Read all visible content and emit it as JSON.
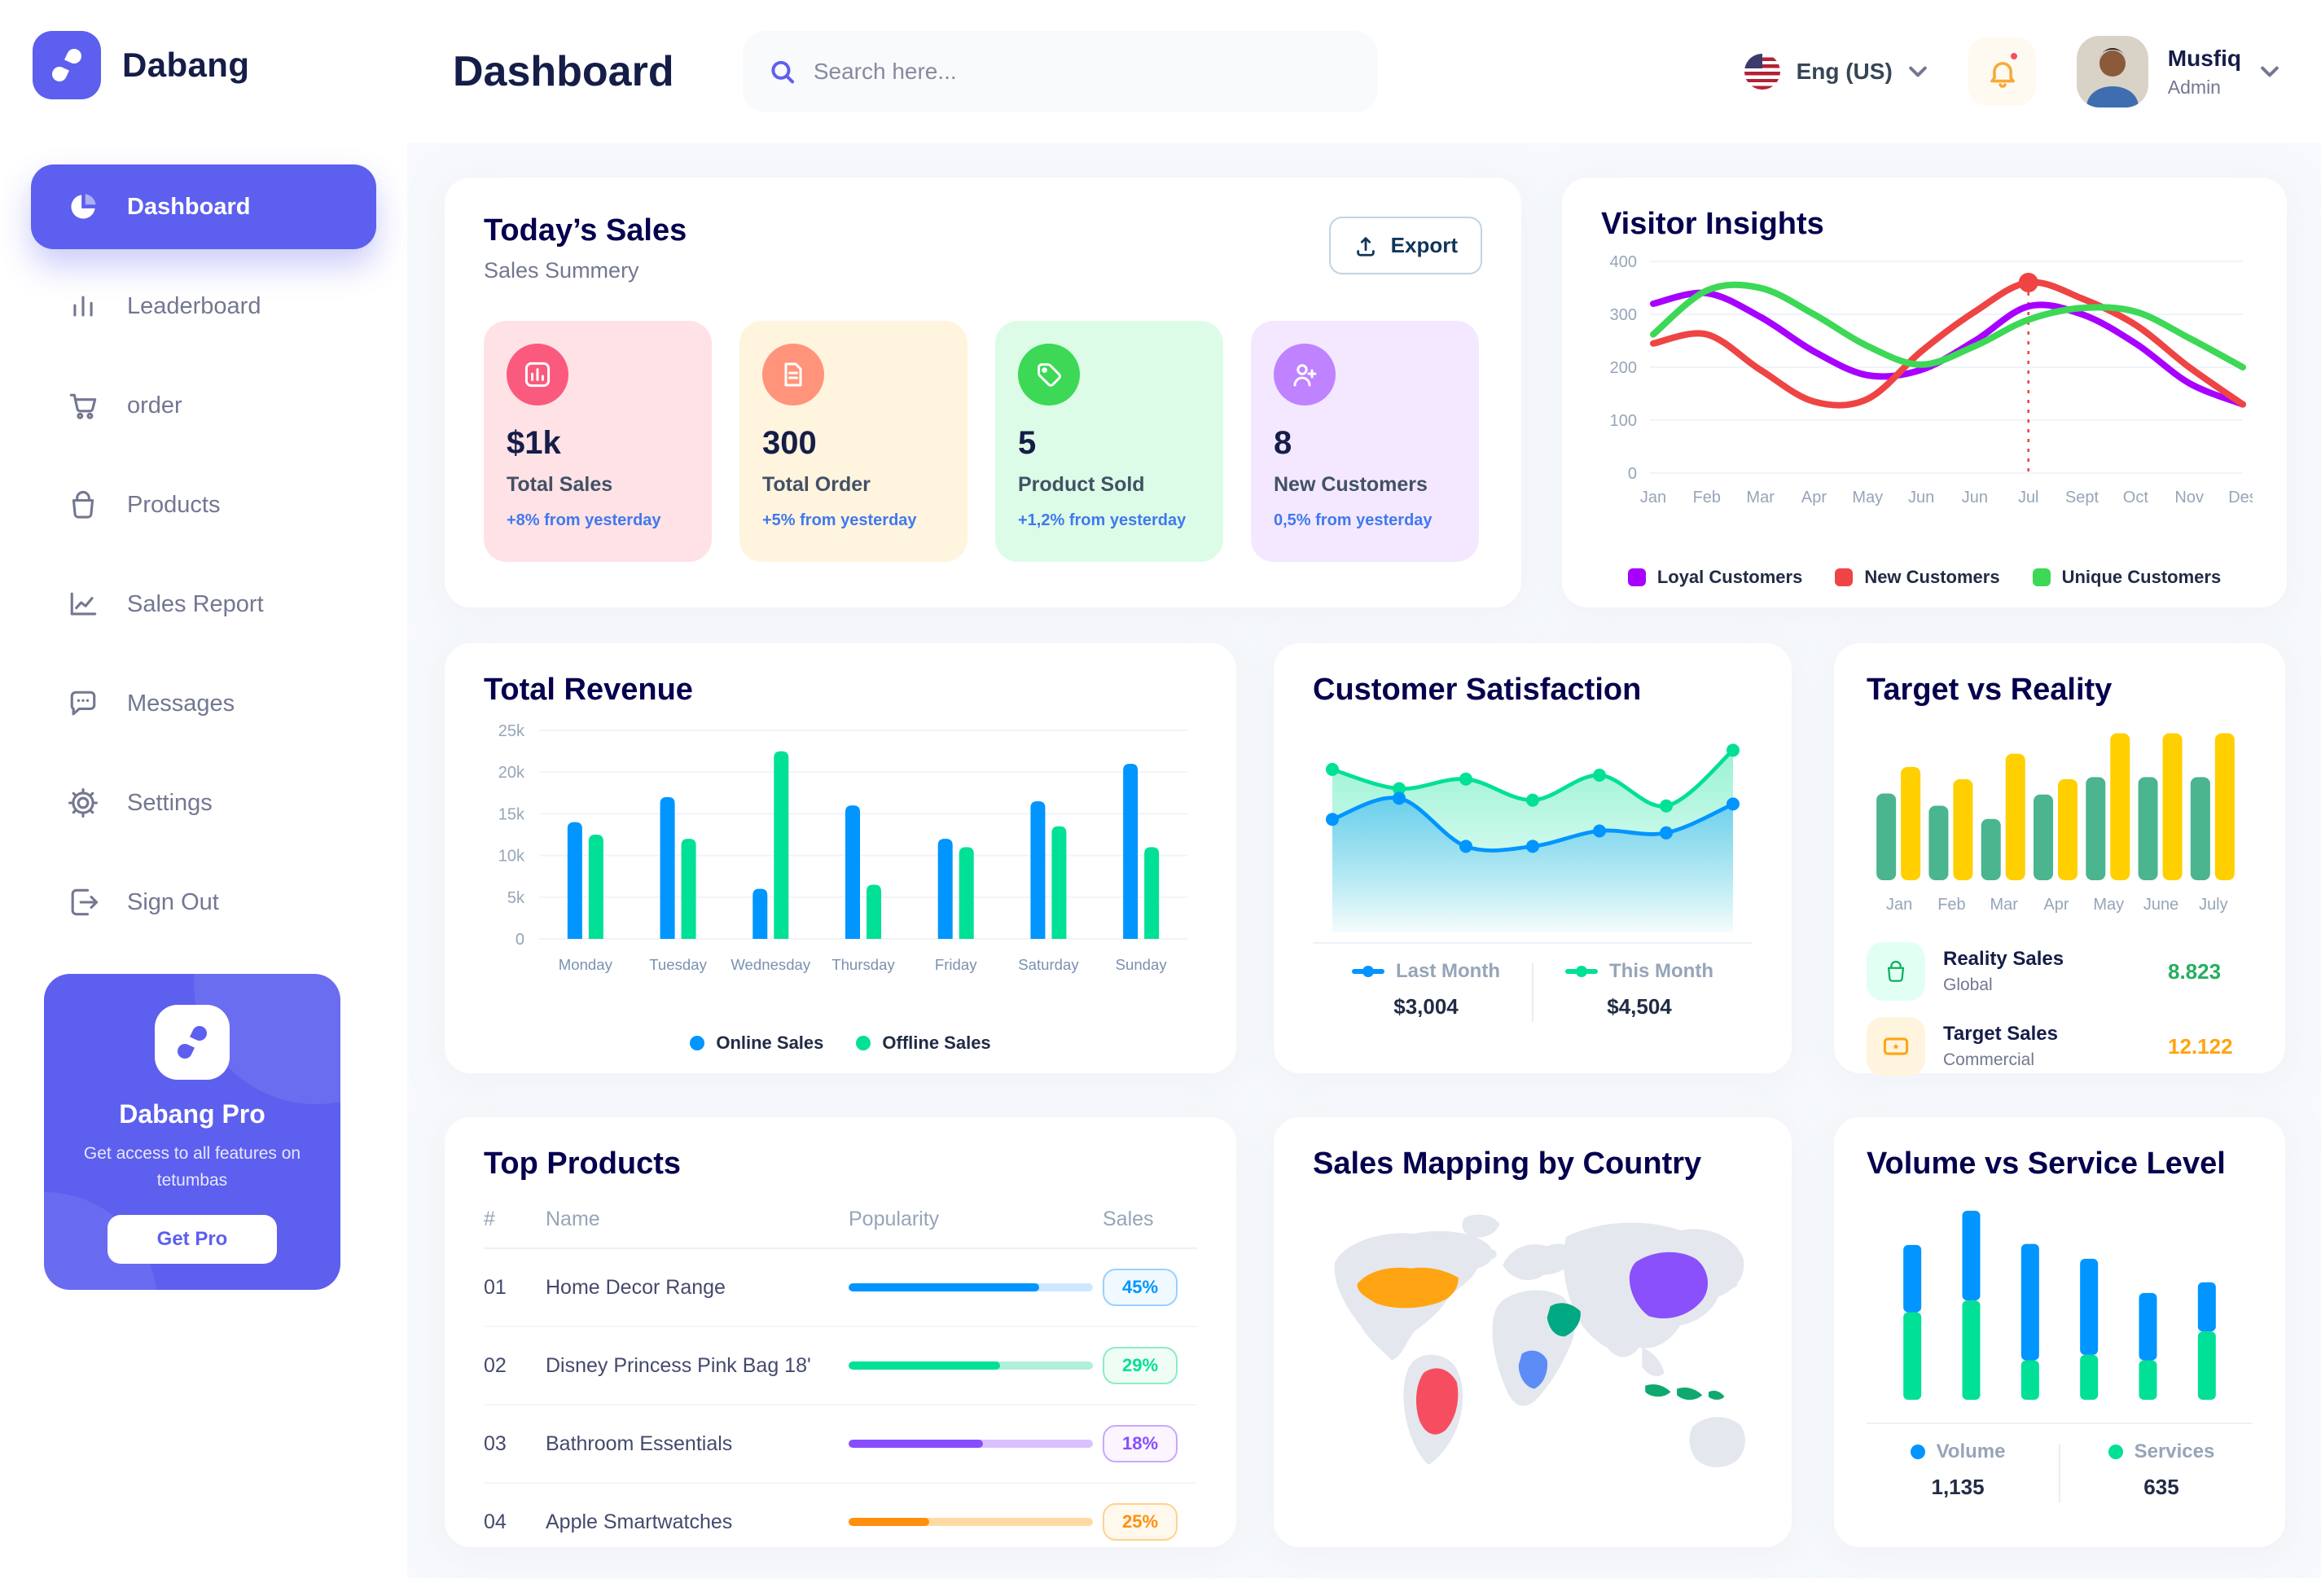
{
  "brand": {
    "name": "Dabang"
  },
  "header": {
    "title": "Dashboard",
    "search_placeholder": "Search here...",
    "language": "Eng (US)",
    "user": {
      "name": "Musfiq",
      "role": "Admin"
    }
  },
  "sidebar": {
    "items": [
      {
        "label": "Dashboard",
        "icon": "pie-chart",
        "active": true
      },
      {
        "label": "Leaderboard",
        "icon": "bar-chart",
        "active": false
      },
      {
        "label": "order",
        "icon": "cart",
        "active": false
      },
      {
        "label": "Products",
        "icon": "bag",
        "active": false
      },
      {
        "label": "Sales Report",
        "icon": "line-chart",
        "active": false
      },
      {
        "label": "Messages",
        "icon": "chat",
        "active": false
      },
      {
        "label": "Settings",
        "icon": "gear",
        "active": false
      },
      {
        "label": "Sign Out",
        "icon": "sign-out",
        "active": false
      }
    ],
    "promo": {
      "title": "Dabang Pro",
      "subtitle": "Get access to all features on tetumbas",
      "cta": "Get Pro"
    }
  },
  "todays_sales": {
    "title": "Today’s Sales",
    "subtitle": "Sales Summery",
    "export_label": "Export",
    "cards": [
      {
        "value": "$1k",
        "label": "Total Sales",
        "delta": "+8% from yesterday",
        "bg": "#FFE2E5",
        "icon_bg": "#FA5A7D",
        "icon": "bar-chart"
      },
      {
        "value": "300",
        "label": "Total Order",
        "delta": "+5% from yesterday",
        "bg": "#FFF4DE",
        "icon_bg": "#FF947A",
        "icon": "file"
      },
      {
        "value": "5",
        "label": "Product Sold",
        "delta": "+1,2% from yesterday",
        "bg": "#DCFCE7",
        "icon_bg": "#3CD856",
        "icon": "tag"
      },
      {
        "value": "8",
        "label": "New Customers",
        "delta": "0,5% from yesterday",
        "bg": "#F3E8FF",
        "icon_bg": "#BF83FF",
        "icon": "user-plus"
      }
    ]
  },
  "visitor_insights": {
    "title": "Visitor Insights",
    "type": "line",
    "x": [
      "Jan",
      "Feb",
      "Mar",
      "Apr",
      "May",
      "Jun",
      "Jun",
      "Jul",
      "Sept",
      "Oct",
      "Nov",
      "Des"
    ],
    "ylim": [
      0,
      400
    ],
    "yticks": [
      0,
      100,
      200,
      300,
      400
    ],
    "series": [
      {
        "name": "Loyal Customers",
        "color": "#A700FF",
        "values": [
          320,
          340,
          295,
          230,
          185,
          195,
          250,
          315,
          300,
          245,
          170,
          130
        ]
      },
      {
        "name": "New Customers",
        "color": "#EF4444",
        "values": [
          245,
          262,
          195,
          135,
          140,
          230,
          305,
          360,
          330,
          280,
          200,
          130
        ]
      },
      {
        "name": "Unique Customers",
        "color": "#3CD856",
        "values": [
          262,
          345,
          350,
          300,
          240,
          205,
          240,
          290,
          312,
          305,
          255,
          200
        ]
      }
    ],
    "marker": {
      "series": "New Customers",
      "x_index": 7,
      "value": 360
    }
  },
  "total_revenue": {
    "title": "Total Revenue",
    "type": "bar",
    "categories": [
      "Monday",
      "Tuesday",
      "Wednesday",
      "Thursday",
      "Friday",
      "Saturday",
      "Sunday"
    ],
    "ylim": [
      0,
      25000
    ],
    "yticks_labels": [
      "0",
      "5k",
      "10k",
      "15k",
      "20k",
      "25k"
    ],
    "series": [
      {
        "name": "Online Sales",
        "color": "#0095FF",
        "values": [
          14000,
          17000,
          6000,
          16000,
          12000,
          16500,
          21000
        ]
      },
      {
        "name": "Offline Sales",
        "color": "#00E096",
        "values": [
          12500,
          12000,
          22500,
          6500,
          11000,
          13500,
          11000
        ]
      }
    ]
  },
  "customer_satisfaction": {
    "title": "Customer Satisfaction",
    "type": "area",
    "series": [
      {
        "name": "Last Month",
        "color": "#0095FF",
        "total": "$3,004",
        "values": [
          52,
          63,
          38,
          38,
          46,
          45,
          60
        ]
      },
      {
        "name": "This Month",
        "color": "#00E096",
        "total": "$4,504",
        "values": [
          78,
          68,
          73,
          62,
          75,
          59,
          88
        ]
      }
    ]
  },
  "target_vs_reality": {
    "title": "Target vs Reality",
    "type": "bar",
    "categories": [
      "Jan",
      "Feb",
      "Mar",
      "Apr",
      "May",
      "June",
      "July"
    ],
    "series": [
      {
        "name": "Reality Sales",
        "color": "#4AB58E",
        "values": [
          8.5,
          7.3,
          6.0,
          8.4,
          10.1,
          10.1,
          10.1
        ]
      },
      {
        "name": "Target Sales",
        "color": "#FFCF00",
        "values": [
          11.1,
          9.9,
          12.4,
          9.9,
          14.4,
          14.4,
          14.4
        ]
      }
    ],
    "legend": [
      {
        "name": "Reality Sales",
        "sub": "Global",
        "value": "8.823",
        "value_color": "#27AE60",
        "tile_bg": "#E2FFF3",
        "icon_color": "#0CAF60",
        "icon": "bag"
      },
      {
        "name": "Target Sales",
        "sub": "Commercial",
        "value": "12.122",
        "value_color": "#FFA412",
        "tile_bg": "#FFF4DE",
        "icon_color": "#FFA412",
        "icon": "ticket"
      }
    ]
  },
  "top_products": {
    "title": "Top Products",
    "columns": [
      "#",
      "Name",
      "Popularity",
      "Sales"
    ],
    "rows": [
      {
        "num": "01",
        "name": "Home Decor Range",
        "popularity": 78,
        "sales": "45%",
        "color": "#0095FF",
        "track": "#CDE7FF",
        "badge_bg": "#F0F9FF",
        "badge_border": "#9AD0FF"
      },
      {
        "num": "02",
        "name": "Disney Princess Pink Bag 18'",
        "popularity": 62,
        "sales": "29%",
        "color": "#00E096",
        "track": "#B0F0D9",
        "badge_bg": "#F0FDF4",
        "badge_border": "#8CEBC8"
      },
      {
        "num": "03",
        "name": "Bathroom Essentials",
        "popularity": 55,
        "sales": "18%",
        "color": "#884DFF",
        "track": "#D9C2FF",
        "badge_bg": "#FAF5FF",
        "badge_border": "#C9A8FF"
      },
      {
        "num": "04",
        "name": "Apple Smartwatches",
        "popularity": 33,
        "sales": "25%",
        "color": "#FF8F0D",
        "track": "#FFD9A3",
        "badge_bg": "#FFF8EC",
        "badge_border": "#FFD193"
      }
    ]
  },
  "sales_mapping": {
    "title": "Sales Mapping by Country",
    "countries": [
      {
        "key": "usa",
        "name": "United States",
        "color": "#FFA412"
      },
      {
        "key": "brazil",
        "name": "Brazil",
        "color": "#F64E60"
      },
      {
        "key": "saudi",
        "name": "Saudi Arabia",
        "color": "#00A884"
      },
      {
        "key": "congo",
        "name": "DR Congo",
        "color": "#5C8DF6"
      },
      {
        "key": "china",
        "name": "China",
        "color": "#8950FC"
      },
      {
        "key": "indonesia",
        "name": "Indonesia",
        "color": "#0FA96F"
      }
    ]
  },
  "volume_service": {
    "title": "Volume vs Service Level",
    "type": "stacked-bar",
    "series": [
      {
        "name": "Volume",
        "color": "#0095FF",
        "total": "1,135",
        "values": [
          6.3,
          8.4,
          10.9,
          9.0,
          6.3,
          4.6
        ]
      },
      {
        "name": "Services",
        "color": "#00E096",
        "total": "635",
        "values": [
          8.2,
          9.3,
          3.7,
          4.2,
          3.7,
          6.4
        ]
      }
    ]
  }
}
